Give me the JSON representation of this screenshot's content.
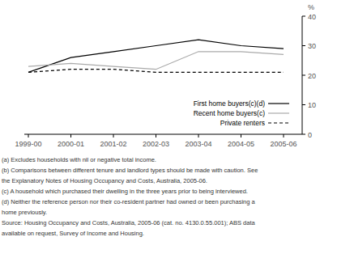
{
  "chart_data": {
    "type": "line",
    "y_label": "%",
    "categories": [
      "1999-00",
      "2000-01",
      "2001-02",
      "2002-03",
      "2003-04",
      "2004-05",
      "2005-06"
    ],
    "series": [
      {
        "name": "First home buyers(c)(d)",
        "color": "#000000",
        "line_style": "solid",
        "values": [
          21,
          26,
          28,
          30,
          32,
          30,
          29
        ]
      },
      {
        "name": "Recent home buyers(c)",
        "color": "#aaaaaa",
        "line_style": "solid",
        "values": [
          23,
          24,
          23,
          22,
          28,
          28,
          27
        ]
      },
      {
        "name": "Private renters",
        "color": "#000000",
        "line_style": "dashed",
        "values": [
          21,
          22,
          22,
          21,
          21,
          21,
          21
        ]
      }
    ],
    "ylim": [
      0,
      40
    ],
    "yticks": [
      0,
      10,
      20,
      30,
      40
    ],
    "grid": false,
    "legend": "lower right",
    "annotations": [
      "(a) Excludes households with nil or negative total income.",
      "(b) Comparisons between different tenure and landlord types should be made with caution. See",
      "the Explanatory Notes of Housing Occupancy and Costs, Australia, 2005-06.",
      "(c) A household which purchased their dwelling in the three years prior to being interviewed.",
      "(d) Neither the reference person nor their co-resident partner had owned or been purchasing a",
      "home previously.",
      "Source: Housing Occupancy and Costs, Australia, 2005-06 (cat. no. 4130.0.55.001); ABS data",
      "available on request, Survey of Income and Housing."
    ]
  }
}
